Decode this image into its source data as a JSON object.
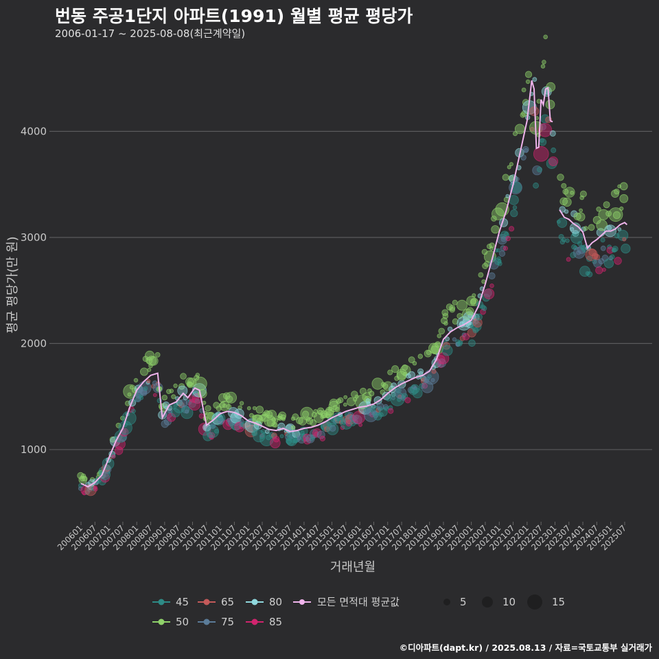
{
  "title": "번동 주공1단지 아파트(1991) 월별 평균 평당가",
  "subtitle": "2006-01-17 ~ 2025-08-08(최근계약일)",
  "caption": "©디아파트(dapt.kr) / 2025.08.13 / 자료=국토교통부 실거래가",
  "chart_data": {
    "type": "scatter",
    "xlabel": "거래년월",
    "ylabel": "평균 평당가(만 원)",
    "y_ticks": [
      1000,
      2000,
      3000,
      4000
    ],
    "ylim": [
      320,
      4850
    ],
    "x_tick_labels": [
      "200601",
      "200607",
      "200701",
      "200707",
      "200801",
      "200807",
      "200901",
      "200907",
      "201001",
      "201007",
      "201101",
      "201107",
      "201201",
      "201207",
      "201301",
      "201307",
      "201401",
      "201407",
      "201501",
      "201507",
      "201601",
      "201607",
      "201701",
      "201707",
      "201801",
      "201807",
      "201901",
      "201907",
      "202001",
      "202007",
      "202101",
      "202107",
      "202201",
      "202207",
      "202301",
      "202307",
      "202401",
      "202407",
      "202501",
      "202507"
    ],
    "x_range": {
      "start": "2006-01",
      "end": "2025-08"
    },
    "grid": true,
    "series": [
      {
        "name": "45",
        "color": "#2e8b86"
      },
      {
        "name": "50",
        "color": "#8fd16a"
      },
      {
        "name": "65",
        "color": "#c45a5a"
      },
      {
        "name": "75",
        "color": "#5b7c99"
      },
      {
        "name": "80",
        "color": "#8fd8dd"
      },
      {
        "name": "85",
        "color": "#d1246e"
      }
    ],
    "average_series": {
      "name": "모든 면적대 평균값",
      "color": "#f0b4ec",
      "points": [
        [
          "2006-01",
          680
        ],
        [
          "2006-04",
          650
        ],
        [
          "2006-07",
          690
        ],
        [
          "2006-10",
          760
        ],
        [
          "2007-01",
          920
        ],
        [
          "2007-04",
          1080
        ],
        [
          "2007-07",
          1200
        ],
        [
          "2007-10",
          1400
        ],
        [
          "2008-01",
          1560
        ],
        [
          "2008-04",
          1640
        ],
        [
          "2008-07",
          1700
        ],
        [
          "2008-10",
          1720
        ],
        [
          "2008-12",
          1300
        ],
        [
          "2009-03",
          1420
        ],
        [
          "2009-06",
          1450
        ],
        [
          "2009-09",
          1530
        ],
        [
          "2009-11",
          1490
        ],
        [
          "2010-02",
          1580
        ],
        [
          "2010-04",
          1560
        ],
        [
          "2010-07",
          1230
        ],
        [
          "2010-10",
          1280
        ],
        [
          "2011-01",
          1340
        ],
        [
          "2011-04",
          1360
        ],
        [
          "2011-07",
          1350
        ],
        [
          "2011-10",
          1320
        ],
        [
          "2012-01",
          1270
        ],
        [
          "2012-04",
          1250
        ],
        [
          "2012-07",
          1220
        ],
        [
          "2012-10",
          1190
        ],
        [
          "2013-01",
          1180
        ],
        [
          "2013-04",
          1200
        ],
        [
          "2013-07",
          1170
        ],
        [
          "2013-10",
          1180
        ],
        [
          "2014-01",
          1200
        ],
        [
          "2014-04",
          1210
        ],
        [
          "2014-07",
          1230
        ],
        [
          "2014-10",
          1260
        ],
        [
          "2015-01",
          1300
        ],
        [
          "2015-04",
          1330
        ],
        [
          "2015-07",
          1360
        ],
        [
          "2015-10",
          1380
        ],
        [
          "2016-01",
          1400
        ],
        [
          "2016-04",
          1410
        ],
        [
          "2016-07",
          1430
        ],
        [
          "2016-10",
          1470
        ],
        [
          "2017-01",
          1530
        ],
        [
          "2017-04",
          1580
        ],
        [
          "2017-07",
          1620
        ],
        [
          "2017-10",
          1650
        ],
        [
          "2018-01",
          1680
        ],
        [
          "2018-04",
          1700
        ],
        [
          "2018-07",
          1740
        ],
        [
          "2018-10",
          1850
        ],
        [
          "2019-01",
          2040
        ],
        [
          "2019-04",
          2110
        ],
        [
          "2019-07",
          2150
        ],
        [
          "2019-10",
          2180
        ],
        [
          "2020-01",
          2220
        ],
        [
          "2020-04",
          2350
        ],
        [
          "2020-07",
          2560
        ],
        [
          "2020-10",
          2800
        ],
        [
          "2021-01",
          3050
        ],
        [
          "2021-04",
          3250
        ],
        [
          "2021-07",
          3500
        ],
        [
          "2021-10",
          3800
        ],
        [
          "2022-01",
          4100
        ],
        [
          "2022-03",
          4480
        ],
        [
          "2022-04",
          4400
        ],
        [
          "2022-05",
          3840
        ],
        [
          "2022-06",
          3850
        ],
        [
          "2022-07",
          4300
        ],
        [
          "2022-08",
          4250
        ],
        [
          "2022-09",
          4400
        ],
        [
          "2022-10",
          4410
        ],
        [
          "2022-11",
          4100
        ],
        [
          "2022-12",
          4090
        ],
        null,
        [
          "2023-03",
          3260
        ],
        [
          "2023-05",
          3190
        ],
        [
          "2023-07",
          3170
        ],
        [
          "2023-09",
          3130
        ],
        [
          "2023-11",
          3100
        ],
        [
          "2024-01",
          3050
        ],
        [
          "2024-03",
          2900
        ],
        [
          "2024-05",
          2950
        ],
        [
          "2024-07",
          2980
        ],
        [
          "2024-09",
          3020
        ],
        [
          "2024-11",
          3060
        ],
        [
          "2025-01",
          3060
        ],
        [
          "2025-03",
          3080
        ],
        [
          "2025-05",
          3120
        ],
        [
          "2025-07",
          3140
        ],
        [
          "2025-08",
          3120
        ]
      ]
    },
    "size_legend": [
      5,
      10,
      15
    ]
  }
}
